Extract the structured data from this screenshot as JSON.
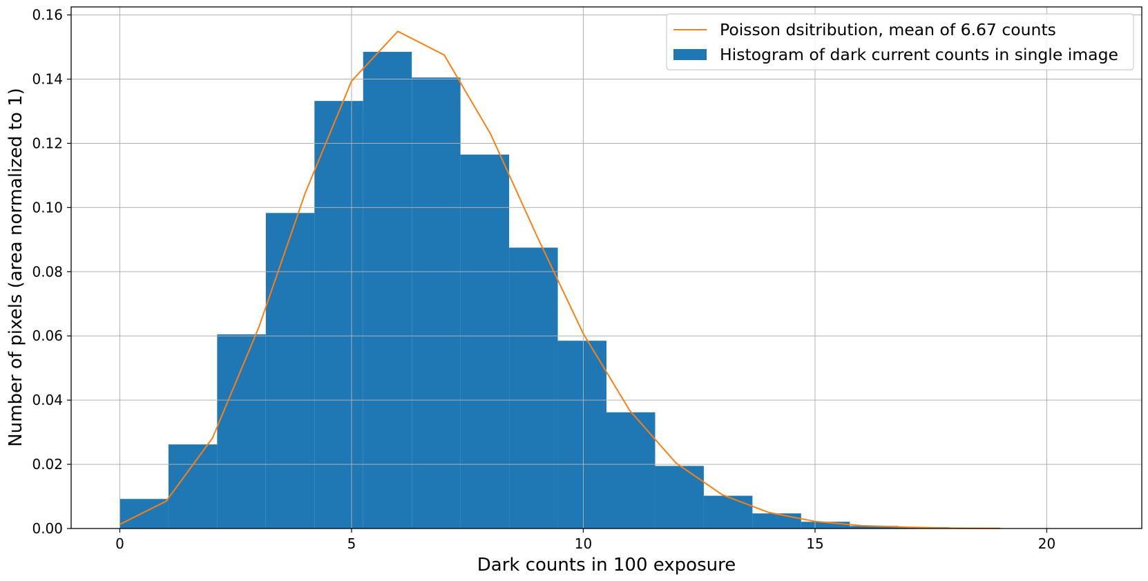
{
  "chart_data": {
    "type": "bar",
    "xlabel": "Dark counts in 100 exposure",
    "ylabel": "Number of pixels (area normalized to 1)",
    "xlim": [
      -1.05,
      22.05
    ],
    "ylim": [
      0,
      0.1625
    ],
    "x_ticks": [
      0,
      5,
      10,
      15,
      20
    ],
    "y_ticks": [
      0.0,
      0.02,
      0.04,
      0.06,
      0.08,
      0.1,
      0.12,
      0.14,
      0.16
    ],
    "x_tick_labels": [
      "0",
      "5",
      "10",
      "15",
      "20"
    ],
    "y_tick_labels": [
      "0.00",
      "0.02",
      "0.04",
      "0.06",
      "0.08",
      "0.10",
      "0.12",
      "0.14",
      "0.16"
    ],
    "grid": true,
    "legend_position": "upper-right",
    "series": [
      {
        "name": "Poisson dsitribution, mean of  6.67 counts",
        "type": "line",
        "color": "#ff7f0e",
        "x": [
          0,
          1,
          2,
          3,
          4,
          5,
          6,
          7,
          8,
          9,
          10,
          11,
          12,
          13,
          14,
          15,
          16,
          17,
          18,
          19
        ],
        "values": [
          0.0013,
          0.0085,
          0.0282,
          0.0627,
          0.1045,
          0.1394,
          0.1549,
          0.1475,
          0.1229,
          0.0911,
          0.0607,
          0.0368,
          0.0204,
          0.0105,
          0.005,
          0.0022,
          0.0009,
          0.0004,
          0.0001,
          5e-05
        ]
      },
      {
        "name": "Histogram of dark current counts in single image",
        "type": "histogram",
        "color": "#1f77b4",
        "bin_edges": [
          0,
          1.05,
          2.1,
          3.15,
          4.2,
          5.25,
          6.3,
          7.35,
          8.4,
          9.45,
          10.5,
          11.55,
          12.6,
          13.65,
          14.7,
          15.75,
          16.8,
          17.85,
          18.9,
          19.95,
          21.0
        ],
        "values": [
          0.0092,
          0.0262,
          0.0605,
          0.0983,
          0.1332,
          0.1485,
          0.1405,
          0.1165,
          0.0875,
          0.0585,
          0.0362,
          0.0195,
          0.0102,
          0.0047,
          0.0021,
          0.0008,
          0.0004,
          0.0001,
          5e-05,
          0.0
        ]
      }
    ]
  }
}
